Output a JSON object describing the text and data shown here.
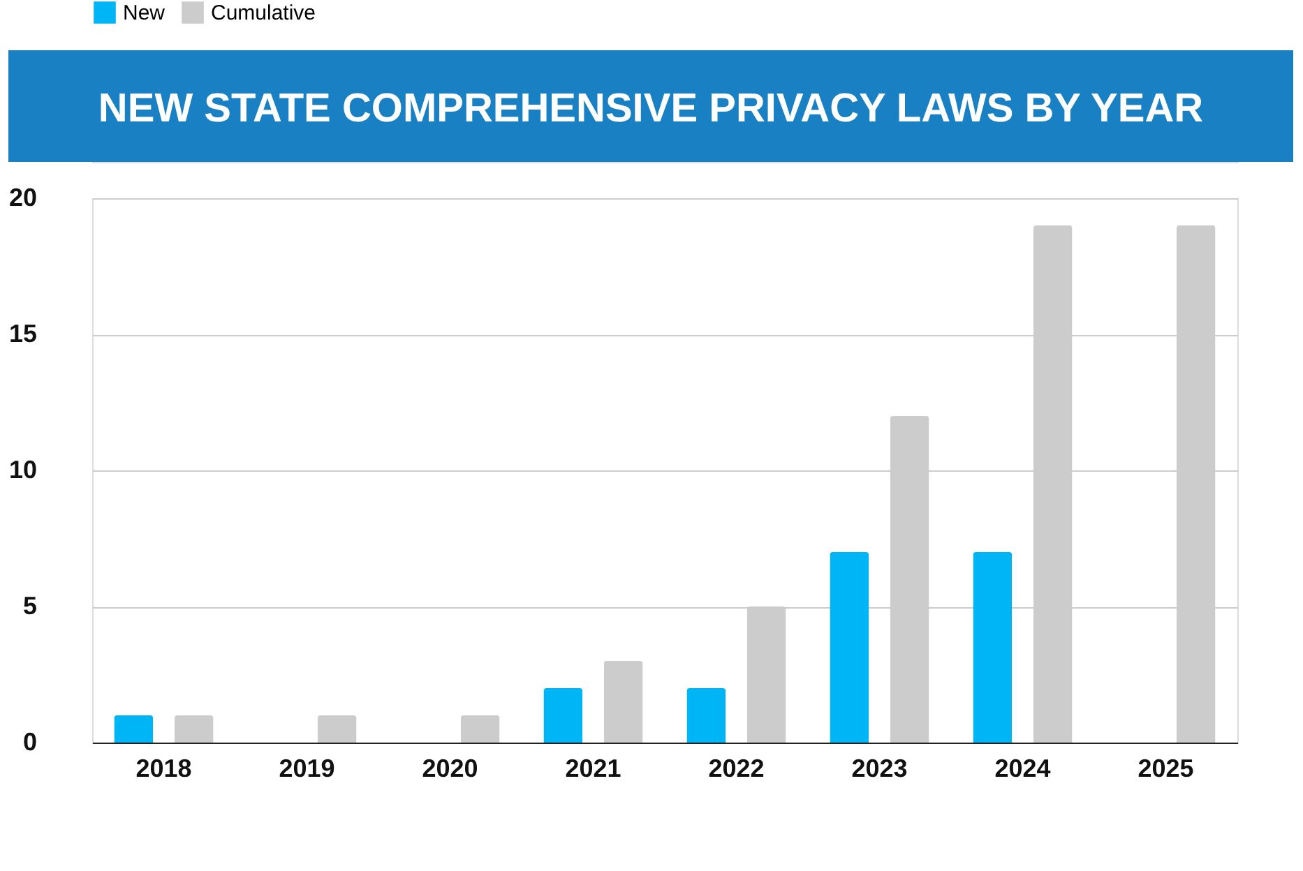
{
  "chart_data": {
    "type": "bar",
    "title": "NEW STATE COMPREHENSIVE PRIVACY LAWS BY YEAR",
    "categories": [
      "2018",
      "2019",
      "2020",
      "2021",
      "2022",
      "2023",
      "2024",
      "2025"
    ],
    "series": [
      {
        "name": "New",
        "color": "#00b5f5",
        "values": [
          1,
          null,
          null,
          2,
          2,
          7,
          7,
          null
        ]
      },
      {
        "name": "Cumulative",
        "color": "#cccccc",
        "values": [
          1,
          1,
          1,
          3,
          5,
          12,
          19,
          19
        ]
      }
    ],
    "ylim": [
      0,
      20
    ],
    "yticks": [
      0,
      5,
      10,
      15,
      20
    ],
    "grid": "y",
    "legend": "top"
  }
}
